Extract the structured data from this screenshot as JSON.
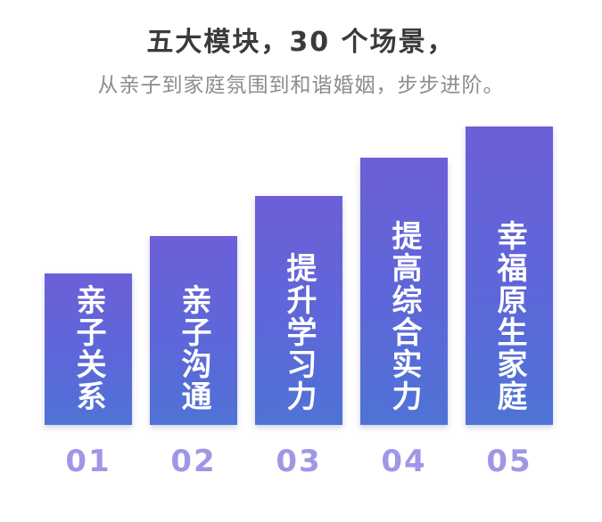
{
  "header": {
    "title": "五大模块，30 个场景，",
    "subtitle": "从亲子到家庭氛围到和谐婚姻，步步进阶。"
  },
  "modules": [
    {
      "label": "亲子关系",
      "number": "01",
      "level": 1
    },
    {
      "label": "亲子沟通",
      "number": "02",
      "level": 2
    },
    {
      "label": "提升学习力",
      "number": "03",
      "level": 3
    },
    {
      "label": "提高综合实力",
      "number": "04",
      "level": 4
    },
    {
      "label": "幸福原生家庭",
      "number": "05",
      "level": 5
    }
  ],
  "colors": {
    "bar_top": "#6c5fd8",
    "bar_bottom": "#4f73d6",
    "number": "#9f97e6",
    "title": "#3a3a3a",
    "subtitle": "#8c8c8c"
  }
}
